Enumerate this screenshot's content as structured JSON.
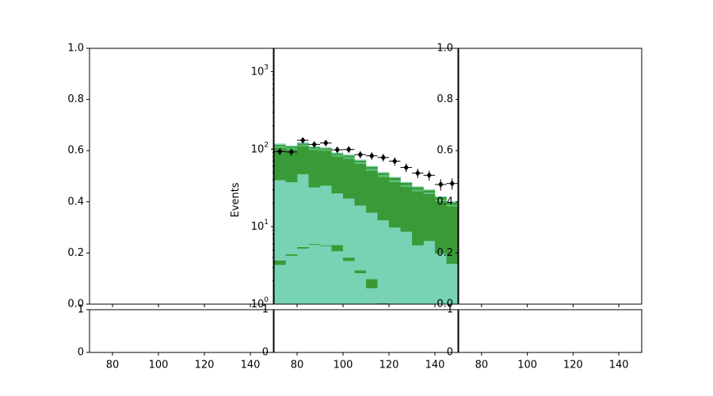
{
  "chart_data": {
    "type": "bar",
    "panels": [
      {
        "name": "left-main",
        "yticks": [
          "0.0",
          "0.2",
          "0.4",
          "0.6",
          "0.8",
          "1.0"
        ],
        "ylim": [
          0,
          1
        ]
      },
      {
        "name": "center-main",
        "ylabel": "Events",
        "yscale": "log",
        "ylim": [
          1,
          2000
        ],
        "ytick_labels": [
          {
            "value": 1,
            "label": "10^0"
          },
          {
            "value": 10,
            "label": "10^1"
          },
          {
            "value": 100,
            "label": "10^2"
          },
          {
            "value": 1000,
            "label": "10^3"
          }
        ]
      },
      {
        "name": "right-main",
        "yticks": [
          "0.0",
          "0.2",
          "0.4",
          "0.6",
          "0.8",
          "1.0"
        ],
        "ylim": [
          0,
          1
        ]
      }
    ],
    "ratio_panels": {
      "yticks": [
        "0",
        "1"
      ],
      "ylim": [
        0,
        1
      ]
    },
    "xaxis": {
      "xlim": [
        70,
        150
      ],
      "ticks": [
        80,
        100,
        120,
        140
      ]
    },
    "stack": {
      "bin_edges": [
        70,
        75,
        80,
        85,
        90,
        95,
        100,
        105,
        110,
        115,
        120,
        125,
        130,
        135,
        140,
        145,
        150
      ],
      "layers": [
        {
          "color": "#77d3b4",
          "values": [
            3.2,
            4.2,
            5.2,
            5.8,
            5.6,
            4.8,
            3.6,
            2.5,
            1.6,
            0.93,
            0.61,
            0.46,
            0.38,
            0.33,
            0.3,
            0.27
          ]
        },
        {
          "color": "#3a9a38",
          "values": [
            0.45,
            0.2,
            0.27,
            0.17,
            0.15,
            1.0,
            0.39,
            0.22,
            0.5,
            0.1,
            0.11,
            0.11,
            0.34,
            0.19,
            0.16,
            0.05
          ]
        },
        {
          "color": "#77d3b4",
          "values": [
            36,
            33,
            42,
            26,
            28,
            21,
            19,
            16,
            13,
            11,
            9,
            8,
            5,
            6,
            4,
            3
          ]
        },
        {
          "color": "#3a9a38",
          "values": [
            65,
            62,
            62,
            66,
            62,
            54,
            52,
            46,
            38,
            32,
            28,
            24,
            23,
            20,
            17,
            15
          ]
        },
        {
          "color": "#55c07a",
          "values": [
            4,
            4,
            4,
            3.5,
            3,
            3,
            3.5,
            3,
            2.5,
            2,
            2,
            1.6,
            1.3,
            1.1,
            0.9,
            0.8
          ]
        },
        {
          "color": "#3a9a38",
          "values": [
            5,
            5,
            5,
            4.5,
            4,
            4,
            4,
            3.5,
            3.5,
            3,
            3,
            2.5,
            2.2,
            1.8,
            1.6,
            1.4
          ]
        },
        {
          "color": "#77d3b4",
          "values": [
            4,
            3,
            4,
            3,
            2.5,
            2.5,
            2.5,
            2,
            1.5,
            1.5,
            1,
            1,
            0.8,
            0.8,
            0.6,
            0.6
          ]
        }
      ]
    },
    "data_points": {
      "x": [
        72.5,
        77.5,
        82.5,
        87.5,
        92.5,
        97.5,
        102.5,
        107.5,
        112.5,
        117.5,
        122.5,
        127.5,
        132.5,
        137.5,
        142.5,
        147.5
      ],
      "y": [
        93,
        92,
        130,
        115,
        120,
        98,
        99,
        85,
        82,
        78,
        70,
        58,
        49,
        46,
        35,
        36
      ],
      "yerr": [
        9.6,
        9.6,
        11.4,
        10.7,
        11,
        9.9,
        9.9,
        9.2,
        9.1,
        8.8,
        8.4,
        7.6,
        7,
        6.8,
        5.9,
        6
      ]
    }
  }
}
